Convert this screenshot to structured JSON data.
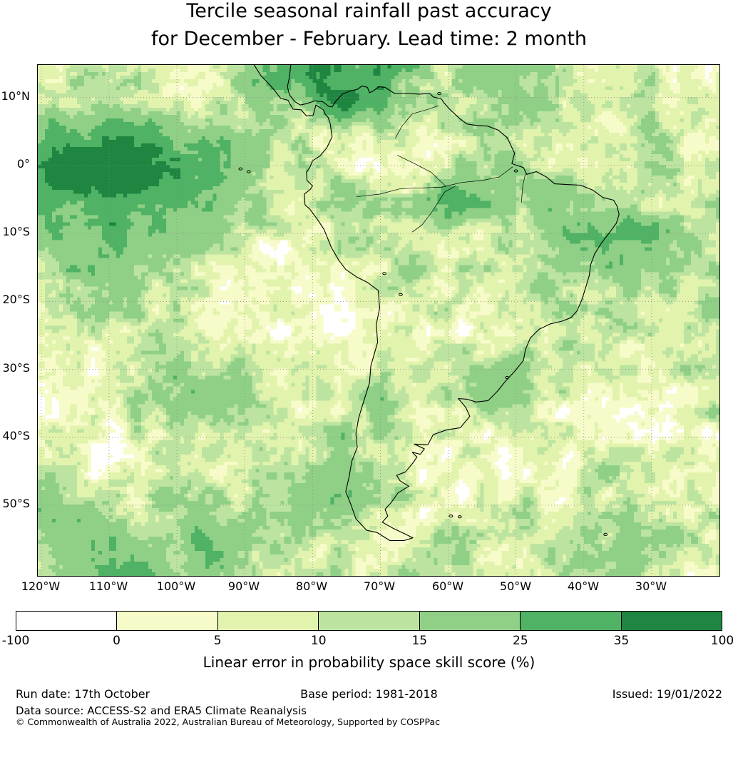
{
  "title": {
    "line1": "Tercile seasonal rainfall past accuracy",
    "line2": "for December - February. Lead time: 2 month"
  },
  "map": {
    "x_ticks": [
      "120°W",
      "110°W",
      "100°W",
      "90°W",
      "80°W",
      "70°W",
      "60°W",
      "50°W",
      "40°W",
      "30°W"
    ],
    "y_ticks": [
      "10°N",
      "0°",
      "10°S",
      "20°S",
      "30°S",
      "40°S",
      "50°S"
    ]
  },
  "colorbar": {
    "ticks": [
      "-100",
      "0",
      "5",
      "10",
      "15",
      "25",
      "35",
      "100"
    ],
    "label": "Linear error in probability space skill score (%)"
  },
  "footer": {
    "run_date": "Run date: 17th October",
    "base_period": "Base period: 1981-2018",
    "issued": "Issued: 19/01/2022",
    "source": "Data source: ACCESS-S2 and ERA5 Climate Reanalysis",
    "copyright": "© Commonwealth of Australia 2022, Australian Bureau of Meteorology, Supported by COSPPac"
  },
  "chart_data": {
    "type": "heatmap",
    "title": "Tercile seasonal rainfall past accuracy for December - February. Lead time: 2 month",
    "region": "South America and surrounding oceans",
    "variable": "Linear error in probability space skill score",
    "units": "%",
    "extent": {
      "lon": [
        -120.5,
        -20
      ],
      "lat": [
        14.8,
        -60.4
      ]
    },
    "levels": [
      -100,
      0,
      5,
      10,
      15,
      25,
      35,
      100
    ],
    "colors": [
      "#ffffff",
      "#f7fbc9",
      "#e2f3ad",
      "#bce4a0",
      "#8fd086",
      "#4fb264",
      "#1e8641"
    ],
    "tick_lons": [
      -120,
      -110,
      -100,
      -90,
      -80,
      -70,
      -60,
      -50,
      -40,
      -30
    ],
    "tick_lats": [
      10,
      0,
      -10,
      -20,
      -30,
      -40,
      -50
    ],
    "gridline_lons": [
      -120,
      -110,
      -100,
      -90,
      -80,
      -70,
      -60,
      -50,
      -40,
      -30
    ],
    "gridline_lats": [
      10,
      0,
      -10,
      -20,
      -30,
      -40,
      -50
    ],
    "grid": {
      "lons": [
        -120,
        -115,
        -110,
        -105,
        -100,
        -95,
        -90,
        -85,
        -80,
        -75,
        -70,
        -65,
        -60,
        -55,
        -50,
        -45,
        -40,
        -35,
        -30,
        -25,
        -20
      ],
      "lats": [
        14.8,
        10,
        5,
        0,
        -5,
        -10,
        -15,
        -20,
        -25,
        -30,
        -35,
        -40,
        -45,
        -50,
        -55,
        -60
      ],
      "values": [
        [
          10,
          10,
          8,
          7,
          7,
          8,
          20,
          30,
          40,
          30,
          30,
          20,
          12,
          20,
          20,
          12,
          8,
          8,
          10,
          5,
          4
        ],
        [
          10,
          12,
          10,
          8,
          7,
          7,
          12,
          20,
          25,
          40,
          25,
          18,
          12,
          12,
          20,
          12,
          8,
          6,
          10,
          6,
          4
        ],
        [
          25,
          30,
          30,
          28,
          22,
          20,
          18,
          12,
          5,
          6,
          10,
          8,
          8,
          12,
          12,
          10,
          7,
          7,
          12,
          8,
          6
        ],
        [
          35,
          55,
          55,
          45,
          35,
          30,
          20,
          10,
          20,
          5,
          3,
          8,
          8,
          18,
          20,
          8,
          7,
          10,
          12,
          8,
          7
        ],
        [
          22,
          30,
          30,
          28,
          28,
          20,
          15,
          8,
          10,
          15,
          12,
          15,
          28,
          22,
          15,
          25,
          20,
          15,
          10,
          8,
          8
        ],
        [
          20,
          20,
          28,
          20,
          18,
          18,
          10,
          6,
          5,
          8,
          12,
          12,
          12,
          12,
          12,
          18,
          22,
          28,
          25,
          18,
          12
        ],
        [
          12,
          18,
          20,
          18,
          12,
          10,
          6,
          3,
          3,
          6,
          10,
          18,
          10,
          10,
          12,
          12,
          18,
          18,
          18,
          12,
          12
        ],
        [
          8,
          12,
          12,
          12,
          10,
          7,
          3,
          2,
          2,
          6,
          10,
          10,
          6,
          7,
          10,
          12,
          12,
          10,
          12,
          12,
          18
        ],
        [
          6,
          7,
          10,
          12,
          18,
          10,
          6,
          2,
          2,
          3,
          7,
          10,
          6,
          3,
          7,
          10,
          12,
          8,
          10,
          12,
          12
        ],
        [
          3,
          6,
          7,
          12,
          18,
          18,
          10,
          6,
          3,
          3,
          7,
          7,
          12,
          20,
          22,
          12,
          7,
          6,
          7,
          10,
          12
        ],
        [
          3,
          3,
          7,
          12,
          18,
          18,
          18,
          10,
          7,
          12,
          18,
          10,
          10,
          18,
          12,
          7,
          3,
          6,
          6,
          7,
          10
        ],
        [
          6,
          3,
          3,
          7,
          10,
          12,
          12,
          10,
          12,
          18,
          12,
          6,
          2,
          3,
          3,
          6,
          6,
          3,
          3,
          6,
          7
        ],
        [
          10,
          7,
          3,
          3,
          6,
          7,
          7,
          10,
          18,
          18,
          10,
          6,
          2,
          3,
          6,
          7,
          10,
          10,
          7,
          3,
          6
        ],
        [
          18,
          18,
          12,
          10,
          18,
          18,
          12,
          10,
          18,
          18,
          12,
          7,
          3,
          7,
          10,
          7,
          7,
          10,
          12,
          7,
          7
        ],
        [
          18,
          28,
          28,
          18,
          18,
          28,
          20,
          18,
          12,
          10,
          7,
          10,
          12,
          7,
          10,
          12,
          12,
          18,
          18,
          12,
          10
        ],
        [
          12,
          18,
          28,
          28,
          18,
          18,
          18,
          12,
          10,
          7,
          10,
          12,
          12,
          10,
          12,
          12,
          12,
          18,
          12,
          10,
          10
        ]
      ]
    },
    "coastline": [
      [
        -88.6,
        14.8
      ],
      [
        -87.6,
        13.2
      ],
      [
        -86.8,
        12.4
      ],
      [
        -85.7,
        11.2
      ],
      [
        -84.7,
        9.9
      ],
      [
        -83.6,
        9.6
      ],
      [
        -82.9,
        8.3
      ],
      [
        -81.7,
        8.2
      ],
      [
        -80.9,
        7.3
      ],
      [
        -79.9,
        7.4
      ],
      [
        -79.5,
        8.9
      ],
      [
        -78.4,
        8.2
      ],
      [
        -78.1,
        7.5
      ],
      [
        -77.7,
        7.1
      ],
      [
        -77.4,
        6.2
      ],
      [
        -77.1,
        4.2
      ],
      [
        -77.9,
        2.6
      ],
      [
        -78.9,
        1.4
      ],
      [
        -80.0,
        0.7
      ],
      [
        -80.4,
        -0.3
      ],
      [
        -80.9,
        -1.0
      ],
      [
        -80.8,
        -2.2
      ],
      [
        -80.0,
        -3.0
      ],
      [
        -80.3,
        -3.5
      ],
      [
        -81.2,
        -4.2
      ],
      [
        -81.1,
        -5.8
      ],
      [
        -80.4,
        -6.4
      ],
      [
        -79.3,
        -7.9
      ],
      [
        -78.3,
        -9.4
      ],
      [
        -77.2,
        -12.1
      ],
      [
        -76.1,
        -14.0
      ],
      [
        -75.1,
        -15.3
      ],
      [
        -73.5,
        -16.4
      ],
      [
        -71.9,
        -17.2
      ],
      [
        -70.3,
        -18.4
      ],
      [
        -70.1,
        -21.0
      ],
      [
        -70.6,
        -23.4
      ],
      [
        -70.4,
        -26.0
      ],
      [
        -71.4,
        -29.5
      ],
      [
        -71.6,
        -32.0
      ],
      [
        -72.6,
        -35.2
      ],
      [
        -73.2,
        -37.2
      ],
      [
        -73.6,
        -39.5
      ],
      [
        -73.4,
        -41.5
      ],
      [
        -74.2,
        -43.5
      ],
      [
        -74.6,
        -45.8
      ],
      [
        -75.1,
        -48.0
      ],
      [
        -74.3,
        -50.0
      ],
      [
        -73.6,
        -52.0
      ],
      [
        -72.0,
        -53.7
      ],
      [
        -70.5,
        -54.0
      ],
      [
        -68.6,
        -55.2
      ],
      [
        -66.5,
        -55.2
      ],
      [
        -65.2,
        -54.8
      ],
      [
        -66.4,
        -54.2
      ],
      [
        -68.1,
        -53.4
      ],
      [
        -69.7,
        -52.5
      ],
      [
        -68.9,
        -51.6
      ],
      [
        -69.3,
        -50.6
      ],
      [
        -68.4,
        -49.6
      ],
      [
        -67.4,
        -48.2
      ],
      [
        -65.8,
        -47.2
      ],
      [
        -67.1,
        -46.4
      ],
      [
        -67.6,
        -45.6
      ],
      [
        -66.3,
        -45.1
      ],
      [
        -65.2,
        -43.8
      ],
      [
        -64.6,
        -42.9
      ],
      [
        -65.3,
        -42.2
      ],
      [
        -64.1,
        -42.5
      ],
      [
        -63.5,
        -41.7
      ],
      [
        -65.0,
        -41.0
      ],
      [
        -63.0,
        -41.1
      ],
      [
        -62.2,
        -39.6
      ],
      [
        -60.2,
        -38.9
      ],
      [
        -58.2,
        -38.6
      ],
      [
        -56.8,
        -36.9
      ],
      [
        -57.4,
        -35.6
      ],
      [
        -58.5,
        -34.3
      ],
      [
        -57.2,
        -34.4
      ],
      [
        -55.9,
        -34.8
      ],
      [
        -54.1,
        -34.6
      ],
      [
        -52.7,
        -33.2
      ],
      [
        -51.6,
        -31.8
      ],
      [
        -50.2,
        -30.3
      ],
      [
        -48.9,
        -28.7
      ],
      [
        -48.6,
        -27.1
      ],
      [
        -47.9,
        -25.4
      ],
      [
        -46.6,
        -24.1
      ],
      [
        -44.9,
        -23.3
      ],
      [
        -43.2,
        -22.9
      ],
      [
        -41.9,
        -22.4
      ],
      [
        -41.0,
        -21.4
      ],
      [
        -40.3,
        -19.8
      ],
      [
        -39.7,
        -17.9
      ],
      [
        -39.2,
        -16.2
      ],
      [
        -39.0,
        -14.6
      ],
      [
        -38.4,
        -13.0
      ],
      [
        -37.4,
        -11.4
      ],
      [
        -36.3,
        -10.0
      ],
      [
        -35.2,
        -8.5
      ],
      [
        -34.8,
        -7.2
      ],
      [
        -35.1,
        -6.0
      ],
      [
        -35.6,
        -5.1
      ],
      [
        -37.2,
        -4.7
      ],
      [
        -38.7,
        -3.6
      ],
      [
        -40.5,
        -2.9
      ],
      [
        -42.5,
        -2.8
      ],
      [
        -44.3,
        -2.7
      ],
      [
        -45.5,
        -1.7
      ],
      [
        -47.0,
        -0.9
      ],
      [
        -48.4,
        -1.3
      ],
      [
        -48.9,
        -0.3
      ],
      [
        -50.1,
        0.1
      ],
      [
        -50.6,
        0.3
      ],
      [
        -50.2,
        1.8
      ],
      [
        -51.3,
        4.1
      ],
      [
        -52.6,
        5.2
      ],
      [
        -54.2,
        5.8
      ],
      [
        -55.9,
        5.9
      ],
      [
        -57.2,
        6.1
      ],
      [
        -58.3,
        6.9
      ],
      [
        -59.8,
        8.3
      ],
      [
        -60.6,
        9.2
      ],
      [
        -61.0,
        9.8
      ],
      [
        -62.2,
        10.1
      ],
      [
        -62.7,
        10.6
      ],
      [
        -64.3,
        10.5
      ],
      [
        -65.9,
        10.6
      ],
      [
        -67.9,
        10.6
      ],
      [
        -69.3,
        11.5
      ],
      [
        -70.2,
        11.6
      ],
      [
        -71.0,
        11.0
      ],
      [
        -71.6,
        10.7
      ],
      [
        -71.9,
        11.5
      ],
      [
        -72.7,
        11.7
      ],
      [
        -73.4,
        11.2
      ],
      [
        -74.4,
        11.0
      ],
      [
        -75.6,
        10.5
      ],
      [
        -76.6,
        9.4
      ],
      [
        -77.1,
        8.6
      ],
      [
        -77.6,
        8.7
      ],
      [
        -78.5,
        9.4
      ],
      [
        -79.7,
        9.5
      ],
      [
        -80.9,
        9.1
      ],
      [
        -81.8,
        8.9
      ],
      [
        -82.6,
        9.4
      ],
      [
        -83.4,
        10.4
      ],
      [
        -83.7,
        11.6
      ],
      [
        -83.4,
        13.0
      ],
      [
        -83.2,
        14.8
      ]
    ],
    "rivers": [
      [
        [
          -73.5,
          -4.6
        ],
        [
          -70.0,
          -4.2
        ],
        [
          -67.0,
          -3.4
        ],
        [
          -64.0,
          -3.3
        ],
        [
          -61.0,
          -3.2
        ],
        [
          -58.0,
          -2.5
        ],
        [
          -55.0,
          -2.2
        ],
        [
          -52.5,
          -1.7
        ],
        [
          -50.5,
          -0.2
        ]
      ],
      [
        [
          -65.3,
          -9.8
        ],
        [
          -63.9,
          -8.8
        ],
        [
          -62.5,
          -7.0
        ],
        [
          -60.5,
          -3.9
        ],
        [
          -58.9,
          -3.0
        ]
      ],
      [
        [
          -67.5,
          1.5
        ],
        [
          -65.0,
          0.3
        ],
        [
          -62.5,
          -1.0
        ],
        [
          -60.3,
          -3.1
        ]
      ],
      [
        [
          -67.8,
          4.0
        ],
        [
          -66.8,
          5.8
        ],
        [
          -65.3,
          7.6
        ],
        [
          -63.2,
          8.2
        ],
        [
          -61.4,
          8.8
        ]
      ],
      [
        [
          -49.2,
          -5.5
        ],
        [
          -49.0,
          -3.0
        ],
        [
          -48.6,
          -1.2
        ]
      ]
    ],
    "islands": [
      [
        -90.6,
        -0.5
      ],
      [
        -89.4,
        -0.9
      ],
      [
        -59.6,
        -51.6
      ],
      [
        -58.3,
        -51.7
      ],
      [
        -69.4,
        -15.9
      ],
      [
        -67.0,
        -19.0
      ],
      [
        -61.3,
        10.6
      ],
      [
        -50.0,
        -0.8
      ],
      [
        -51.3,
        -31.2
      ],
      [
        -36.8,
        -54.3
      ]
    ]
  }
}
